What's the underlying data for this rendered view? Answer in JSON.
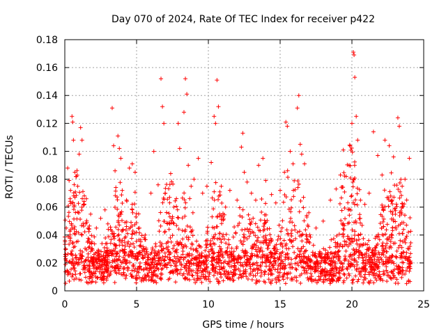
{
  "chart_data": {
    "type": "scatter",
    "title": "Day 070 of 2024, Rate Of TEC Index for receiver p422",
    "xlabel": "GPS time / hours",
    "ylabel": "ROTI / TECUs",
    "xlim": [
      0,
      25
    ],
    "ylim": [
      0,
      0.18
    ],
    "xticks": [
      0,
      5,
      10,
      15,
      20,
      25
    ],
    "xtick_labels": [
      "0",
      "5",
      "10",
      "15",
      "20",
      "25"
    ],
    "yticks": [
      0,
      0.02,
      0.04,
      0.06,
      0.08,
      0.1,
      0.12,
      0.14,
      0.16,
      0.18
    ],
    "ytick_labels": [
      "0",
      "0.02",
      "0.04",
      "0.06",
      "0.08",
      "0.1",
      "0.12",
      "0.14",
      "0.16",
      "0.18"
    ],
    "grid": true,
    "marker": "+",
    "marker_color": "#ff0000",
    "series": [
      {
        "name": "ROTI",
        "note": "Dense background band of points between ~0.005 and ~0.03 TECU/s spanning 0-24 h, with clustered spikes listed below",
        "points": [
          [
            0.1,
            0.045
          ],
          [
            0.2,
            0.088
          ],
          [
            0.3,
            0.079
          ],
          [
            0.4,
            0.072
          ],
          [
            0.5,
            0.125
          ],
          [
            0.55,
            0.121
          ],
          [
            0.6,
            0.108
          ],
          [
            0.7,
            0.085
          ],
          [
            0.9,
            0.075
          ],
          [
            1.0,
            0.098
          ],
          [
            1.1,
            0.117
          ],
          [
            1.2,
            0.108
          ],
          [
            1.3,
            0.062
          ],
          [
            1.5,
            0.066
          ],
          [
            1.8,
            0.055
          ],
          [
            2.2,
            0.045
          ],
          [
            2.5,
            0.052
          ],
          [
            2.8,
            0.058
          ],
          [
            3.0,
            0.048
          ],
          [
            3.3,
            0.131
          ],
          [
            3.4,
            0.104
          ],
          [
            3.5,
            0.086
          ],
          [
            3.7,
            0.111
          ],
          [
            3.8,
            0.102
          ],
          [
            3.9,
            0.095
          ],
          [
            4.0,
            0.072
          ],
          [
            4.3,
            0.065
          ],
          [
            4.5,
            0.088
          ],
          [
            4.7,
            0.091
          ],
          [
            4.9,
            0.085
          ],
          [
            5.2,
            0.045
          ],
          [
            5.6,
            0.04
          ],
          [
            6.0,
            0.07
          ],
          [
            6.2,
            0.1
          ],
          [
            6.5,
            0.076
          ],
          [
            6.7,
            0.152
          ],
          [
            6.8,
            0.132
          ],
          [
            6.9,
            0.12
          ],
          [
            7.0,
            0.07
          ],
          [
            7.3,
            0.067
          ],
          [
            7.6,
            0.06
          ],
          [
            7.9,
            0.12
          ],
          [
            8.0,
            0.102
          ],
          [
            8.3,
            0.128
          ],
          [
            8.4,
            0.152
          ],
          [
            8.5,
            0.141
          ],
          [
            8.6,
            0.09
          ],
          [
            8.8,
            0.075
          ],
          [
            9.0,
            0.08
          ],
          [
            9.3,
            0.095
          ],
          [
            9.6,
            0.07
          ],
          [
            9.9,
            0.075
          ],
          [
            10.2,
            0.092
          ],
          [
            10.4,
            0.125
          ],
          [
            10.5,
            0.12
          ],
          [
            10.6,
            0.151
          ],
          [
            10.7,
            0.132
          ],
          [
            10.9,
            0.075
          ],
          [
            11.2,
            0.06
          ],
          [
            11.5,
            0.072
          ],
          [
            12.0,
            0.065
          ],
          [
            12.3,
            0.103
          ],
          [
            12.4,
            0.113
          ],
          [
            12.5,
            0.085
          ],
          [
            12.7,
            0.078
          ],
          [
            13.0,
            0.07
          ],
          [
            13.3,
            0.065
          ],
          [
            13.5,
            0.09
          ],
          [
            13.8,
            0.095
          ],
          [
            14.0,
            0.079
          ],
          [
            14.4,
            0.069
          ],
          [
            14.7,
            0.063
          ],
          [
            15.0,
            0.072
          ],
          [
            15.3,
            0.085
          ],
          [
            15.4,
            0.121
          ],
          [
            15.5,
            0.118
          ],
          [
            15.7,
            0.1
          ],
          [
            15.9,
            0.091
          ],
          [
            16.2,
            0.131
          ],
          [
            16.3,
            0.14
          ],
          [
            16.4,
            0.105
          ],
          [
            16.5,
            0.098
          ],
          [
            16.7,
            0.091
          ],
          [
            17.0,
            0.056
          ],
          [
            17.5,
            0.045
          ],
          [
            18.0,
            0.05
          ],
          [
            18.5,
            0.065
          ],
          [
            18.9,
            0.073
          ],
          [
            19.2,
            0.083
          ],
          [
            19.4,
            0.101
          ],
          [
            19.6,
            0.082
          ],
          [
            19.8,
            0.09
          ],
          [
            20.0,
            0.12
          ],
          [
            20.1,
            0.171
          ],
          [
            20.15,
            0.169
          ],
          [
            20.2,
            0.153
          ],
          [
            20.3,
            0.125
          ],
          [
            20.4,
            0.108
          ],
          [
            20.6,
            0.065
          ],
          [
            20.9,
            0.062
          ],
          [
            21.2,
            0.07
          ],
          [
            21.5,
            0.114
          ],
          [
            21.8,
            0.097
          ],
          [
            22.1,
            0.083
          ],
          [
            22.3,
            0.108
          ],
          [
            22.6,
            0.104
          ],
          [
            22.9,
            0.096
          ],
          [
            23.2,
            0.124
          ],
          [
            23.3,
            0.118
          ],
          [
            23.5,
            0.075
          ],
          [
            23.7,
            0.08
          ],
          [
            24.0,
            0.095
          ]
        ]
      }
    ]
  }
}
